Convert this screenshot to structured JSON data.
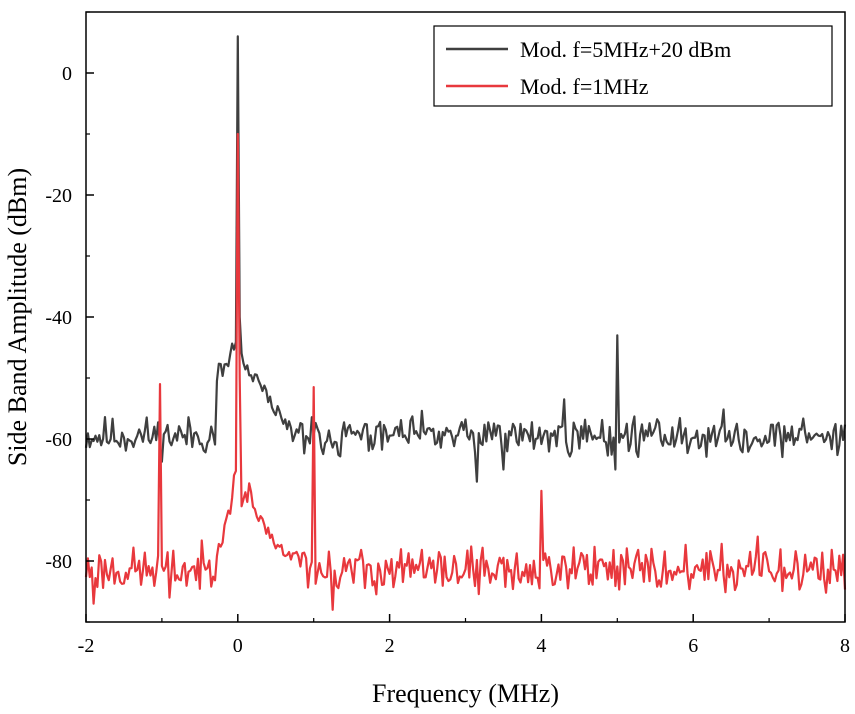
{
  "chart_data": {
    "type": "line",
    "title": "",
    "xlabel": "Frequency (MHz)",
    "ylabel": "Side Band Amplitude (dBm)",
    "xlim": [
      -2,
      8
    ],
    "ylim": [
      -90,
      10
    ],
    "xticks": [
      -2,
      0,
      2,
      4,
      6,
      8
    ],
    "yticks": [
      0,
      -20,
      -40,
      -60,
      -80
    ],
    "xtick_labels": [
      "-2",
      "0",
      "2",
      "4",
      "6",
      "8"
    ],
    "ytick_labels": [
      "0",
      "-20",
      "-40",
      "-60",
      "-80"
    ],
    "grid": false,
    "legend_position": "top-right",
    "series": [
      {
        "name": "Mod. f=5MHz+20 dBm",
        "color": "#3f3f3f",
        "base": -59.5,
        "noise": 2.2,
        "seed": 11,
        "features": [
          {
            "type": "shape",
            "points": [
              [
                -0.3,
                -53
              ],
              [
                -0.25,
                -48
              ],
              [
                -0.15,
                -49
              ],
              [
                -0.08,
                -44.5
              ],
              [
                -0.02,
                -45
              ]
            ]
          },
          {
            "type": "shape",
            "points": [
              [
                0.04,
                -47
              ],
              [
                0.12,
                -49
              ],
              [
                0.25,
                -50.5
              ],
              [
                0.45,
                -54
              ],
              [
                0.6,
                -57
              ],
              [
                0.75,
                -59.5
              ]
            ]
          },
          {
            "type": "spike",
            "x": 0,
            "y": 6
          },
          {
            "type": "spike",
            "x": 0.02,
            "y": -40
          },
          {
            "type": "spike",
            "x": 4.3,
            "y": -53.5
          },
          {
            "type": "spike",
            "x": 5.0,
            "y": -43
          },
          {
            "type": "spike",
            "x": 3.15,
            "y": -67
          },
          {
            "type": "spike",
            "x": 3.5,
            "y": -65
          },
          {
            "type": "spike",
            "x": 4.98,
            "y": -65
          }
        ]
      },
      {
        "name": "Mod. f=1MHz",
        "color": "#e8383d",
        "base": -81.5,
        "noise": 2.5,
        "seed": 23,
        "features": [
          {
            "type": "shape",
            "points": [
              [
                -0.3,
                -79
              ],
              [
                -0.2,
                -76
              ],
              [
                -0.12,
                -73
              ],
              [
                -0.05,
                -67
              ],
              [
                -0.02,
                -66
              ]
            ]
          },
          {
            "type": "shape",
            "points": [
              [
                0.04,
                -72
              ],
              [
                0.15,
                -68
              ],
              [
                0.3,
                -73
              ],
              [
                0.5,
                -77
              ],
              [
                0.7,
                -79
              ],
              [
                0.9,
                -80
              ]
            ]
          },
          {
            "type": "spike",
            "x": -1.02,
            "y": -51
          },
          {
            "type": "spike",
            "x": -0.9,
            "y": -86
          },
          {
            "type": "spike",
            "x": 0,
            "y": -10
          },
          {
            "type": "spike",
            "x": 0.02,
            "y": -50
          },
          {
            "type": "spike",
            "x": 1.0,
            "y": -51.5
          },
          {
            "type": "spike",
            "x": 1.25,
            "y": -88
          },
          {
            "type": "spike",
            "x": 4.0,
            "y": -68.5
          },
          {
            "type": "spike",
            "x": 5.45,
            "y": -78
          },
          {
            "type": "spike",
            "x": 6.85,
            "y": -76
          },
          {
            "type": "spike",
            "x": -1.9,
            "y": -87
          }
        ]
      }
    ]
  }
}
